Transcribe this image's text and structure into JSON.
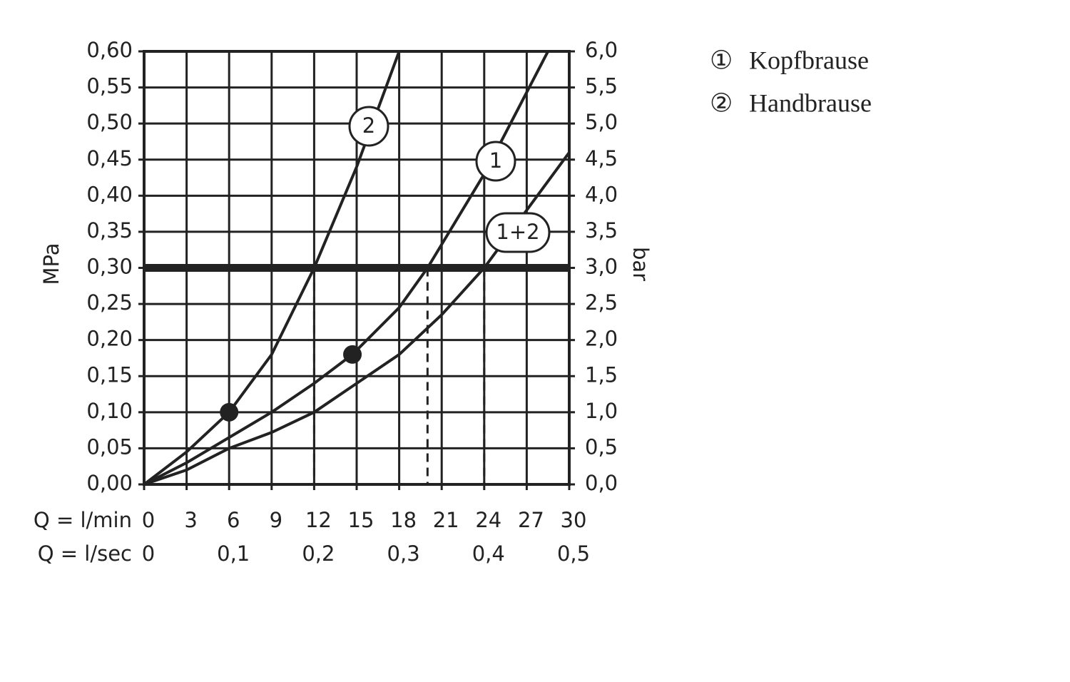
{
  "chart_data": {
    "type": "line",
    "xlabel": "Q = l/min",
    "x2label": "Q = l/sec",
    "ylabel": "MPa",
    "y2label": "bar",
    "xlim": [
      0,
      30
    ],
    "xticks": [
      0,
      3,
      6,
      9,
      12,
      15,
      18,
      21,
      24,
      27,
      30
    ],
    "x2lim": [
      0,
      0.5
    ],
    "x2ticks": [
      0,
      {
        "value": 0.1,
        "label": "0,1"
      },
      {
        "value": 0.2,
        "label": "0,2"
      },
      {
        "value": 0.3,
        "label": "0,3"
      },
      {
        "value": 0.4,
        "label": "0,4"
      },
      {
        "value": 0.5,
        "label": "0,5"
      }
    ],
    "ylim": [
      0,
      0.6
    ],
    "yticks": [
      {
        "value": 0,
        "label": "0,00"
      },
      {
        "value": 0.05,
        "label": "0,05"
      },
      {
        "value": 0.1,
        "label": "0,10"
      },
      {
        "value": 0.15,
        "label": "0,15"
      },
      {
        "value": 0.2,
        "label": "0,20"
      },
      {
        "value": 0.25,
        "label": "0,25"
      },
      {
        "value": 0.3,
        "label": "0,30"
      },
      {
        "value": 0.35,
        "label": "0,35"
      },
      {
        "value": 0.4,
        "label": "0,40"
      },
      {
        "value": 0.45,
        "label": "0,45"
      },
      {
        "value": 0.5,
        "label": "0,50"
      },
      {
        "value": 0.55,
        "label": "0,55"
      },
      {
        "value": 0.6,
        "label": "0,60"
      }
    ],
    "y2lim": [
      0,
      6
    ],
    "y2ticks": [
      {
        "value": 0,
        "label": "0,0"
      },
      {
        "value": 0.5,
        "label": "0,5"
      },
      {
        "value": 1,
        "label": "1,0"
      },
      {
        "value": 1.5,
        "label": "1,5"
      },
      {
        "value": 2,
        "label": "2,0"
      },
      {
        "value": 2.5,
        "label": "2,5"
      },
      {
        "value": 3,
        "label": "3,0"
      },
      {
        "value": 3.5,
        "label": "3,5"
      },
      {
        "value": 4,
        "label": "4,0"
      },
      {
        "value": 4.5,
        "label": "4,5"
      },
      {
        "value": 5,
        "label": "5,0"
      },
      {
        "value": 5.5,
        "label": "5,5"
      },
      {
        "value": 6,
        "label": "6,0"
      }
    ],
    "grid": true,
    "color": "#222222",
    "series": [
      {
        "name": "2",
        "x": [
          0,
          3,
          6,
          9,
          12,
          15,
          18
        ],
        "values": [
          0,
          0.045,
          0.1,
          0.18,
          0.3,
          0.44,
          0.6
        ]
      },
      {
        "name": "1",
        "x": [
          0,
          3,
          6,
          9,
          12,
          14.7,
          18,
          20,
          24,
          28.5
        ],
        "values": [
          0,
          0.03,
          0.065,
          0.1,
          0.14,
          0.18,
          0.245,
          0.3,
          0.43,
          0.6
        ]
      },
      {
        "name": "1+2",
        "x": [
          0,
          3,
          6,
          9,
          12,
          15,
          18,
          21,
          24,
          27,
          30
        ],
        "values": [
          0,
          0.02,
          0.05,
          0.072,
          0.1,
          0.14,
          0.18,
          0.235,
          0.3,
          0.38,
          0.46
        ]
      }
    ],
    "points": {
      "x": [
        6,
        14.7
      ],
      "values": [
        0.1,
        0.18
      ]
    },
    "reference_line": 0.3,
    "drop_lines": [
      12,
      20,
      24
    ],
    "legend": [
      {
        "symbol": "①",
        "text": "Kopfbrause"
      },
      {
        "symbol": "②",
        "text": "Handbrause"
      }
    ]
  }
}
